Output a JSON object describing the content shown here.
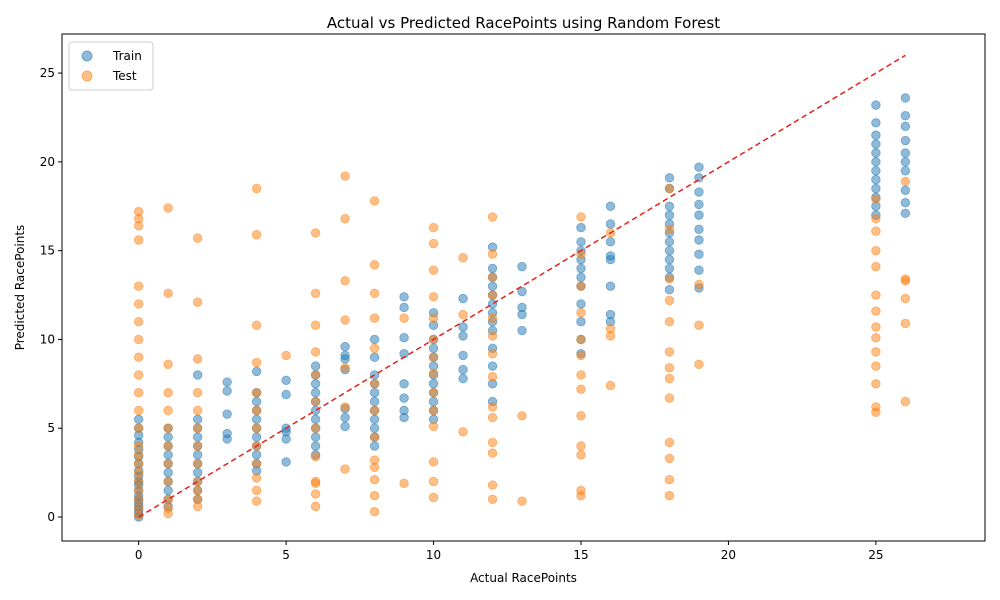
{
  "chart_data": {
    "type": "scatter",
    "title": "Actual vs Predicted RacePoints using Random Forest",
    "xlabel": "Actual RacePoints",
    "ylabel": "Predicted RacePoints",
    "xlim": [
      -2.6,
      28.7
    ],
    "ylim": [
      -1.35,
      27.2
    ],
    "xticks": [
      0,
      5,
      10,
      15,
      20,
      25
    ],
    "yticks": [
      0,
      5,
      10,
      15,
      20,
      25
    ],
    "legend_position": "top-left",
    "reference_line": {
      "x": [
        0,
        26
      ],
      "y": [
        0,
        26
      ],
      "style": "dashed",
      "color": "#e5221a"
    },
    "series": [
      {
        "name": "Train",
        "color": "#1f77b4",
        "x": [
          0,
          0,
          0,
          0,
          0,
          0,
          0,
          0,
          0,
          0,
          0,
          0,
          0,
          0,
          0,
          0,
          0,
          0,
          0,
          1,
          1,
          1,
          1,
          1,
          1,
          1,
          1,
          1,
          1,
          2,
          2,
          2,
          2,
          2,
          2,
          2,
          2,
          2,
          2,
          2,
          3,
          3,
          3,
          3,
          3,
          4,
          4,
          4,
          4,
          4,
          4,
          4,
          4,
          4,
          4,
          4,
          5,
          5,
          5,
          5,
          5,
          5,
          6,
          6,
          6,
          6,
          6,
          6,
          6,
          6,
          6,
          6,
          6,
          7,
          7,
          7,
          7,
          7,
          7,
          7,
          8,
          8,
          8,
          8,
          8,
          8,
          8,
          8,
          8,
          8,
          8,
          9,
          9,
          9,
          9,
          9,
          9,
          9,
          9,
          10,
          10,
          10,
          10,
          10,
          10,
          10,
          10,
          10,
          10,
          10,
          10,
          11,
          11,
          11,
          11,
          11,
          11,
          12,
          12,
          12,
          12,
          12,
          12,
          12,
          12,
          12,
          12,
          12,
          12,
          12,
          13,
          13,
          13,
          13,
          13,
          15,
          15,
          15,
          15,
          15,
          15,
          15,
          15,
          15,
          15,
          15,
          16,
          16,
          16,
          16,
          16,
          16,
          16,
          16,
          18,
          18,
          18,
          18,
          18,
          18,
          18,
          18,
          18,
          18,
          18,
          18,
          19,
          19,
          19,
          19,
          19,
          19,
          19,
          19,
          19,
          19,
          25,
          25,
          25,
          25,
          25,
          25,
          25,
          25,
          25,
          25,
          25,
          25,
          26,
          26,
          26,
          26,
          26,
          26,
          26,
          26,
          26,
          26
        ],
        "y": [
          0,
          0.2,
          0.4,
          0.6,
          0.8,
          1,
          1.2,
          1.5,
          1.8,
          2,
          2.3,
          2.6,
          3,
          3.4,
          3.8,
          4.2,
          4.6,
          5,
          5.5,
          0.6,
          1,
          1.5,
          2,
          2.5,
          3,
          3.5,
          4,
          4.5,
          5,
          1,
          1.5,
          2,
          2.5,
          3,
          3.5,
          4,
          4.5,
          5,
          5.5,
          8,
          4.4,
          4.7,
          5.8,
          7.1,
          7.6,
          2.6,
          3,
          3.5,
          4,
          4.5,
          5,
          5.5,
          6,
          6.5,
          7,
          8.2,
          3.1,
          4.4,
          4.8,
          5,
          6.9,
          7.7,
          3.5,
          4,
          4.5,
          5,
          5.5,
          6,
          6.5,
          7,
          7.5,
          8,
          8.5,
          5.1,
          5.6,
          6.1,
          8.3,
          8.9,
          9.1,
          9.6,
          4,
          4.5,
          5,
          5.5,
          6,
          6.5,
          7,
          7.5,
          8,
          9,
          10,
          5.6,
          6,
          6.7,
          7.5,
          9.2,
          10.1,
          11.8,
          12.4,
          5.5,
          6,
          6.5,
          7,
          7.5,
          8,
          8.5,
          9,
          9.5,
          10,
          10.8,
          11.5,
          7.8,
          8.3,
          9.1,
          10.2,
          10.7,
          12.3,
          6.5,
          7.5,
          8.5,
          9.5,
          10.5,
          11,
          11.5,
          12,
          12.5,
          13,
          13.5,
          14,
          15.2,
          10.5,
          11.4,
          11.8,
          12.7,
          14.1,
          9.2,
          10,
          11,
          12,
          13,
          13.5,
          14,
          14.5,
          15,
          15.5,
          16.3,
          11,
          11.4,
          13,
          14.5,
          14.7,
          15.5,
          16.5,
          17.5,
          12.8,
          13.5,
          14,
          14.5,
          15,
          15.5,
          16,
          16.5,
          17,
          17.5,
          18.5,
          19.1,
          12.9,
          13.9,
          14.8,
          15.6,
          16.2,
          17,
          17.6,
          18.3,
          19.1,
          19.7,
          17,
          17.5,
          18,
          18.5,
          19,
          19.5,
          20,
          20.5,
          21,
          21.5,
          22.2,
          23.2,
          17.1,
          17.7,
          18.4,
          19.5,
          20,
          20.5,
          21.2,
          22,
          22.6,
          23.6
        ]
      },
      {
        "name": "Test",
        "color": "#ff7f0e",
        "x": [
          0,
          0,
          0,
          0,
          0,
          0,
          0,
          0,
          0,
          0,
          0,
          0,
          0,
          0,
          0,
          0,
          0,
          0,
          0,
          0,
          0,
          0,
          1,
          1,
          1,
          1,
          1,
          1,
          1,
          1,
          1,
          1,
          1,
          1,
          2,
          2,
          2,
          2,
          2,
          2,
          2,
          2,
          2,
          2,
          2,
          2,
          4,
          4,
          4,
          4,
          4,
          4,
          4,
          4,
          4,
          4,
          4,
          4,
          5,
          6,
          6,
          6,
          6,
          6,
          6,
          6,
          6,
          6,
          6,
          6,
          6,
          7,
          7,
          7,
          7,
          7,
          7,
          7,
          8,
          8,
          8,
          8,
          8,
          8,
          8,
          8,
          8,
          8,
          8,
          8,
          8,
          9,
          9,
          10,
          10,
          10,
          10,
          10,
          10,
          10,
          10,
          10,
          10,
          10,
          10,
          10,
          10,
          11,
          11,
          11,
          12,
          12,
          12,
          12,
          12,
          12,
          12,
          12,
          12,
          12,
          12,
          12,
          12,
          12,
          13,
          13,
          15,
          15,
          15,
          15,
          15,
          15,
          15,
          15,
          15,
          15,
          15,
          15,
          15,
          16,
          16,
          16,
          16,
          18,
          18,
          18,
          18,
          18,
          18,
          18,
          18,
          18,
          18,
          18,
          18,
          18,
          19,
          19,
          19,
          25,
          25,
          25,
          25,
          25,
          25,
          25,
          25,
          25,
          25,
          25,
          25,
          25,
          25,
          26,
          26,
          26,
          26,
          26,
          26
        ],
        "y": [
          0.1,
          0.5,
          1,
          1.5,
          2,
          2.5,
          3,
          3.5,
          4,
          5,
          6,
          7,
          8,
          9,
          10,
          11,
          12,
          13,
          15.6,
          16.4,
          16.8,
          17.2,
          0.2,
          0.5,
          1,
          2,
          3,
          4,
          5,
          6,
          7,
          8.6,
          12.6,
          17.4,
          0.6,
          1,
          1.5,
          2,
          3,
          4,
          5,
          6,
          7,
          8.9,
          12.1,
          15.7,
          0.9,
          1.5,
          2.2,
          3,
          4,
          5,
          6,
          7,
          8.7,
          10.8,
          15.9,
          18.5,
          9.1,
          0.6,
          1.3,
          2,
          3.4,
          5,
          6.5,
          8,
          9.3,
          10.8,
          12.6,
          16,
          1.9,
          2.7,
          6.2,
          8.4,
          11.1,
          13.3,
          16.8,
          19.2,
          0.3,
          1.2,
          2.1,
          2.8,
          3.2,
          4.5,
          6,
          7.5,
          9.5,
          11.2,
          12.6,
          14.2,
          17.8,
          1.9,
          11.2,
          1.1,
          2,
          3.1,
          5.1,
          6,
          7,
          8.1,
          9,
          10,
          11.2,
          12.4,
          13.9,
          15.4,
          16.3,
          4.8,
          11.4,
          14.6,
          1,
          1.8,
          3.6,
          4.2,
          5.6,
          6.2,
          7.9,
          9.2,
          10.2,
          11.2,
          12.5,
          13.5,
          14.8,
          16.9,
          0.9,
          5.7,
          1.2,
          1.5,
          3.5,
          4,
          5.7,
          7.2,
          8,
          9.1,
          10,
          11.5,
          13,
          14.8,
          16.9,
          7.4,
          10.2,
          10.6,
          16,
          1.2,
          2.1,
          3.3,
          4.2,
          6.7,
          7.8,
          8.4,
          9.3,
          11,
          12.2,
          13.4,
          16.2,
          18.5,
          8.6,
          10.8,
          13.1,
          5.9,
          6.2,
          7.5,
          8.5,
          9.3,
          10.1,
          10.7,
          11.6,
          12.5,
          14.1,
          15,
          16.1,
          16.8,
          17.9,
          6.5,
          10.9,
          12.3,
          13.3,
          13.4,
          18.9
        ]
      }
    ]
  }
}
